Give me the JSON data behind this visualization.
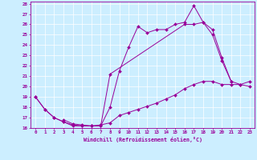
{
  "xlabel": "Windchill (Refroidissement éolien,°C)",
  "bg_color": "#cceeff",
  "line_color": "#990099",
  "grid_color": "#ffffff",
  "xlim": [
    -0.5,
    23.5
  ],
  "ylim": [
    16,
    28.2
  ],
  "yticks": [
    16,
    17,
    18,
    19,
    20,
    21,
    22,
    23,
    24,
    25,
    26,
    27,
    28
  ],
  "xticks": [
    0,
    1,
    2,
    3,
    4,
    5,
    6,
    7,
    8,
    9,
    10,
    11,
    12,
    13,
    14,
    15,
    16,
    17,
    18,
    19,
    20,
    21,
    22,
    23
  ],
  "line1_x": [
    0,
    1,
    2,
    3,
    4,
    5,
    6,
    7,
    8,
    9,
    10,
    11,
    12,
    13,
    14,
    15,
    16,
    17,
    18,
    19,
    20,
    21
  ],
  "line1_y": [
    19,
    17.8,
    17.0,
    16.6,
    16.2,
    16.2,
    16.2,
    16.2,
    18.0,
    21.5,
    23.8,
    25.8,
    25.2,
    25.5,
    25.5,
    26.0,
    26.2,
    27.8,
    26.2,
    25.5,
    22.8,
    20.5
  ],
  "line2_x": [
    3,
    4,
    5,
    6,
    7,
    8,
    16,
    17,
    18,
    19,
    20,
    21,
    22,
    23
  ],
  "line2_y": [
    16.8,
    16.4,
    16.3,
    16.2,
    16.2,
    21.2,
    26.0,
    26.0,
    26.2,
    25.0,
    22.5,
    20.5,
    20.2,
    20.5
  ],
  "line3_x": [
    0,
    1,
    2,
    3,
    4,
    5,
    6,
    7,
    8,
    9,
    10,
    11,
    12,
    13,
    14,
    15,
    16,
    17,
    18,
    19,
    20,
    21,
    22,
    23
  ],
  "line3_y": [
    19,
    17.8,
    17.0,
    16.6,
    16.3,
    16.2,
    16.2,
    16.3,
    16.5,
    17.2,
    17.5,
    17.8,
    18.1,
    18.4,
    18.8,
    19.2,
    19.8,
    20.2,
    20.5,
    20.5,
    20.2,
    20.2,
    20.2,
    20.0
  ]
}
